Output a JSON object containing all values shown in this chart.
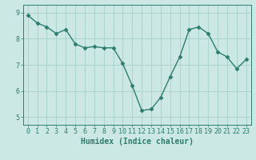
{
  "x": [
    0,
    1,
    2,
    3,
    4,
    5,
    6,
    7,
    8,
    9,
    10,
    11,
    12,
    13,
    14,
    15,
    16,
    17,
    18,
    19,
    20,
    21,
    22,
    23
  ],
  "y": [
    8.9,
    8.6,
    8.45,
    8.2,
    8.35,
    7.8,
    7.65,
    7.7,
    7.65,
    7.65,
    7.05,
    6.2,
    5.25,
    5.3,
    5.75,
    6.55,
    7.3,
    8.35,
    8.45,
    8.2,
    7.5,
    7.3,
    6.85,
    7.2
  ],
  "line_color": "#2d7d6e",
  "marker": "D",
  "markersize": 2.5,
  "linewidth": 1.0,
  "bg_color": "#cce8e4",
  "grid_color": "#a8d0cc",
  "xlabel": "Humidex (Indice chaleur)",
  "ylabel": "",
  "ylim": [
    4.7,
    9.3
  ],
  "xlim": [
    -0.5,
    23.5
  ],
  "yticks": [
    5,
    6,
    7,
    8,
    9
  ],
  "xticks": [
    0,
    1,
    2,
    3,
    4,
    5,
    6,
    7,
    8,
    9,
    10,
    11,
    12,
    13,
    14,
    15,
    16,
    17,
    18,
    19,
    20,
    21,
    22,
    23
  ],
  "tick_color": "#2d7d6e",
  "label_fontsize": 7,
  "tick_fontsize": 6,
  "spine_color": "#2d7d6e"
}
